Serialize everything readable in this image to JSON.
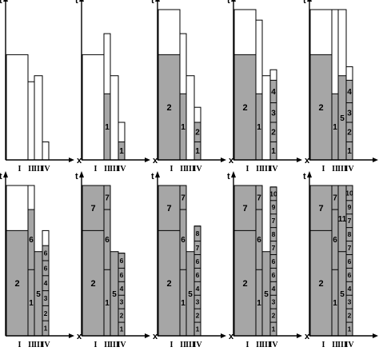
{
  "axis_labels": {
    "t": "t",
    "x": "x"
  },
  "column_names": [
    "I",
    "II",
    "III",
    "IV"
  ],
  "panels": [
    {
      "outline_top": [
        0.7,
        0.52,
        0.56,
        0.12
      ],
      "columns": [
        {
          "fill": 0,
          "blocks": []
        },
        {
          "fill": 0,
          "blocks": []
        },
        {
          "fill": 0,
          "blocks": []
        },
        {
          "fill": 0,
          "blocks": []
        }
      ]
    },
    {
      "outline_top": [
        0.7,
        0.84,
        0.56,
        0.25
      ],
      "columns": [
        {
          "fill": 0,
          "blocks": []
        },
        {
          "fill": 0.44,
          "blocks": [
            {
              "label": "1",
              "size": 0.44
            }
          ]
        },
        {
          "fill": 0,
          "blocks": []
        },
        {
          "fill": 0.12,
          "blocks": [
            {
              "label": "1",
              "size": 0.12
            }
          ]
        }
      ]
    },
    {
      "outline_top": [
        1.0,
        0.84,
        0.56,
        0.35
      ],
      "columns": [
        {
          "fill": 0.7,
          "blocks": [
            {
              "label": "2",
              "size": 0.7
            }
          ]
        },
        {
          "fill": 0.44,
          "blocks": [
            {
              "label": "1",
              "size": 0.44
            }
          ]
        },
        {
          "fill": 0,
          "blocks": []
        },
        {
          "fill": 0.25,
          "blocks": [
            {
              "label": "1",
              "size": 0.12
            },
            {
              "label": "2",
              "size": 0.13
            }
          ]
        }
      ]
    },
    {
      "outline_top": [
        1.0,
        0.93,
        0.56,
        0.6
      ],
      "columns": [
        {
          "fill": 0.7,
          "blocks": [
            {
              "label": "2",
              "size": 0.7
            }
          ]
        },
        {
          "fill": 0.44,
          "blocks": [
            {
              "label": "1",
              "size": 0.44
            }
          ]
        },
        {
          "fill": 0,
          "blocks": []
        },
        {
          "fill": 0.53,
          "blocks": [
            {
              "label": "1",
              "size": 0.12
            },
            {
              "label": "2",
              "size": 0.13
            },
            {
              "label": "3",
              "size": 0.13
            },
            {
              "label": "4",
              "size": 0.15
            }
          ]
        }
      ]
    },
    {
      "outline_top": [
        1.0,
        1.0,
        1.0,
        0.62
      ],
      "columns": [
        {
          "fill": 0.7,
          "blocks": [
            {
              "label": "2",
              "size": 0.7
            }
          ]
        },
        {
          "fill": 0.44,
          "blocks": [
            {
              "label": "1",
              "size": 0.44
            }
          ]
        },
        {
          "fill": 0.56,
          "blocks": [
            {
              "label": "5",
              "size": 0.56
            }
          ]
        },
        {
          "fill": 0.53,
          "blocks": [
            {
              "label": "1",
              "size": 0.12
            },
            {
              "label": "2",
              "size": 0.13
            },
            {
              "label": "3",
              "size": 0.13
            },
            {
              "label": "4",
              "size": 0.15
            }
          ]
        }
      ]
    },
    {
      "outline_top": [
        1.0,
        1.0,
        0.56,
        0.7
      ],
      "columns": [
        {
          "fill": 0.7,
          "blocks": [
            {
              "label": "2",
              "size": 0.7
            }
          ]
        },
        {
          "fill": 0.84,
          "blocks": [
            {
              "label": "1",
              "size": 0.44
            },
            {
              "label": "6",
              "size": 0.4
            }
          ]
        },
        {
          "fill": 0.56,
          "blocks": [
            {
              "label": "5",
              "size": 0.56
            }
          ]
        },
        {
          "fill": 0.6,
          "blocks": [
            {
              "label": "1",
              "size": 0.1
            },
            {
              "label": "2",
              "size": 0.1
            },
            {
              "label": "3",
              "size": 0.1
            },
            {
              "label": "4",
              "size": 0.1
            },
            {
              "label": "6",
              "size": 0.1
            },
            {
              "label": "6",
              "size": 0.1
            }
          ]
        }
      ]
    },
    {
      "outline_top": [
        1.0,
        1.0,
        0.56,
        0.55
      ],
      "columns": [
        {
          "fill": 1.0,
          "blocks": [
            {
              "label": "2",
              "size": 0.7
            },
            {
              "label": "7",
              "size": 0.3
            }
          ]
        },
        {
          "fill": 1.0,
          "blocks": [
            {
              "label": "1",
              "size": 0.44
            },
            {
              "label": "6",
              "size": 0.4
            },
            {
              "label": "7",
              "size": 0.16
            }
          ]
        },
        {
          "fill": 0.56,
          "blocks": [
            {
              "label": "5",
              "size": 0.56
            }
          ]
        },
        {
          "fill": 0.55,
          "blocks": [
            {
              "label": "1",
              "size": 0.09
            },
            {
              "label": "2",
              "size": 0.09
            },
            {
              "label": "3",
              "size": 0.09
            },
            {
              "label": "4",
              "size": 0.09
            },
            {
              "label": "6",
              "size": 0.09
            },
            {
              "label": "6",
              "size": 0.1
            }
          ]
        }
      ]
    },
    {
      "outline_top": [
        1.0,
        1.0,
        0.56,
        0.73
      ],
      "columns": [
        {
          "fill": 1.0,
          "blocks": [
            {
              "label": "2",
              "size": 0.7
            },
            {
              "label": "7",
              "size": 0.3
            }
          ]
        },
        {
          "fill": 1.0,
          "blocks": [
            {
              "label": "1",
              "size": 0.44
            },
            {
              "label": "6",
              "size": 0.4
            },
            {
              "label": "7",
              "size": 0.16
            }
          ]
        },
        {
          "fill": 0.56,
          "blocks": [
            {
              "label": "5",
              "size": 0.56
            }
          ]
        },
        {
          "fill": 0.73,
          "blocks": [
            {
              "label": "1",
              "size": 0.09
            },
            {
              "label": "2",
              "size": 0.09
            },
            {
              "label": "3",
              "size": 0.09
            },
            {
              "label": "4",
              "size": 0.09
            },
            {
              "label": "6",
              "size": 0.09
            },
            {
              "label": "6",
              "size": 0.09
            },
            {
              "label": "7",
              "size": 0.09
            },
            {
              "label": "8",
              "size": 0.1
            }
          ]
        }
      ]
    },
    {
      "outline_top": [
        1.0,
        1.0,
        0.56,
        0.99
      ],
      "columns": [
        {
          "fill": 1.0,
          "blocks": [
            {
              "label": "2",
              "size": 0.7
            },
            {
              "label": "7",
              "size": 0.3
            }
          ]
        },
        {
          "fill": 1.0,
          "blocks": [
            {
              "label": "1",
              "size": 0.44
            },
            {
              "label": "6",
              "size": 0.4
            },
            {
              "label": "7",
              "size": 0.16
            }
          ]
        },
        {
          "fill": 0.56,
          "blocks": [
            {
              "label": "5",
              "size": 0.56
            }
          ]
        },
        {
          "fill": 0.99,
          "blocks": [
            {
              "label": "1",
              "size": 0.09
            },
            {
              "label": "2",
              "size": 0.09
            },
            {
              "label": "3",
              "size": 0.09
            },
            {
              "label": "4",
              "size": 0.09
            },
            {
              "label": "6",
              "size": 0.09
            },
            {
              "label": "6",
              "size": 0.09
            },
            {
              "label": "7",
              "size": 0.09
            },
            {
              "label": "8",
              "size": 0.09
            },
            {
              "label": "7",
              "size": 0.09
            },
            {
              "label": "9",
              "size": 0.09
            },
            {
              "label": "10",
              "size": 0.09
            }
          ]
        }
      ]
    },
    {
      "outline_top": [
        1.0,
        1.0,
        1.0,
        1.0
      ],
      "columns": [
        {
          "fill": 1.0,
          "blocks": [
            {
              "label": "2",
              "size": 0.7
            },
            {
              "label": "7",
              "size": 0.3
            }
          ]
        },
        {
          "fill": 1.0,
          "blocks": [
            {
              "label": "1",
              "size": 0.44
            },
            {
              "label": "6",
              "size": 0.4
            },
            {
              "label": "7",
              "size": 0.16
            }
          ]
        },
        {
          "fill": 1.0,
          "blocks": [
            {
              "label": "5",
              "size": 0.56
            },
            {
              "label": "11",
              "size": 0.44
            }
          ]
        },
        {
          "fill": 1.0,
          "blocks": [
            {
              "label": "1",
              "size": 0.09
            },
            {
              "label": "2",
              "size": 0.09
            },
            {
              "label": "3",
              "size": 0.09
            },
            {
              "label": "4",
              "size": 0.09
            },
            {
              "label": "6",
              "size": 0.09
            },
            {
              "label": "6",
              "size": 0.09
            },
            {
              "label": "7",
              "size": 0.09
            },
            {
              "label": "8",
              "size": 0.09
            },
            {
              "label": "7",
              "size": 0.09
            },
            {
              "label": "9",
              "size": 0.09
            },
            {
              "label": "10",
              "size": 0.1
            }
          ]
        }
      ]
    }
  ]
}
